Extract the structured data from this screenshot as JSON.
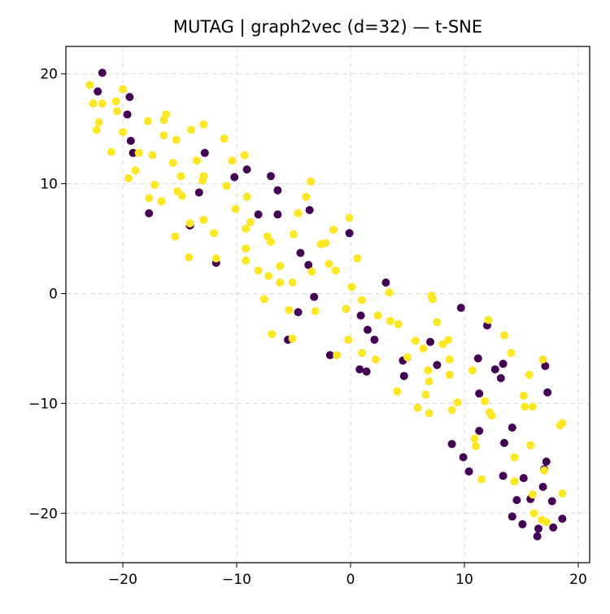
{
  "chart_data": {
    "type": "scatter",
    "title": "MUTAG | graph2vec (d=32) — t-SNE",
    "xlabel": "",
    "ylabel": "",
    "xlim": [
      -25,
      21
    ],
    "ylim": [
      -24.5,
      22.5
    ],
    "xticks": [
      -20,
      -10,
      0,
      10,
      20
    ],
    "yticks": [
      -20,
      -10,
      0,
      10,
      20
    ],
    "xtick_labels": [
      "−20",
      "−10",
      "0",
      "10",
      "20"
    ],
    "ytick_labels": [
      "−20",
      "−10",
      "0",
      "10",
      "20"
    ],
    "grid": true,
    "legend": "none",
    "colors": {
      "class_0": "#440154",
      "class_1": "#fde725"
    },
    "series": [
      {
        "name": "class 0",
        "color": "#440154",
        "points": [
          [
            -21.8,
            20.1
          ],
          [
            -22.2,
            18.4
          ],
          [
            -19.4,
            17.9
          ],
          [
            -19.6,
            16.3
          ],
          [
            -19.3,
            13.9
          ],
          [
            -19.1,
            12.8
          ],
          [
            -17.7,
            7.3
          ],
          [
            -12.8,
            12.8
          ],
          [
            -13.3,
            9.2
          ],
          [
            -14.1,
            6.2
          ],
          [
            -11.8,
            2.8
          ],
          [
            -9.1,
            11.3
          ],
          [
            -10.2,
            10.6
          ],
          [
            -7.0,
            10.7
          ],
          [
            -6.4,
            9.4
          ],
          [
            -8.1,
            7.2
          ],
          [
            -6.4,
            7.2
          ],
          [
            -3.6,
            7.6
          ],
          [
            -4.4,
            3.7
          ],
          [
            -3.7,
            2.6
          ],
          [
            -3.2,
            -0.3
          ],
          [
            -4.6,
            -1.7
          ],
          [
            -5.5,
            -4.2
          ],
          [
            -0.1,
            5.5
          ],
          [
            -1.8,
            -5.6
          ],
          [
            3.1,
            1.0
          ],
          [
            0.9,
            -2.0
          ],
          [
            1.5,
            -3.3
          ],
          [
            2.1,
            -4.2
          ],
          [
            0.8,
            -6.9
          ],
          [
            1.4,
            -7.1
          ],
          [
            4.6,
            -6.1
          ],
          [
            4.7,
            -7.5
          ],
          [
            7.0,
            -4.4
          ],
          [
            7.6,
            -6.5
          ],
          [
            9.7,
            -1.3
          ],
          [
            12.0,
            -2.9
          ],
          [
            11.2,
            -5.9
          ],
          [
            12.7,
            -6.9
          ],
          [
            13.2,
            -7.7
          ],
          [
            13.4,
            -6.4
          ],
          [
            11.3,
            -9.1
          ],
          [
            11.3,
            -12.5
          ],
          [
            8.9,
            -13.7
          ],
          [
            9.9,
            -14.9
          ],
          [
            10.4,
            -16.2
          ],
          [
            13.5,
            -13.6
          ],
          [
            13.4,
            -16.6
          ],
          [
            14.2,
            -12.2
          ],
          [
            14.2,
            -20.3
          ],
          [
            14.6,
            -18.8
          ],
          [
            15.1,
            -21.0
          ],
          [
            15.2,
            -16.8
          ],
          [
            15.8,
            -18.7
          ],
          [
            16.4,
            -22.1
          ],
          [
            16.5,
            -21.4
          ],
          [
            16.9,
            -17.6
          ],
          [
            17.1,
            -6.6
          ],
          [
            17.3,
            -9.0
          ],
          [
            17.2,
            -15.3
          ],
          [
            17.0,
            -16.0
          ],
          [
            17.7,
            -18.9
          ],
          [
            17.8,
            -21.3
          ],
          [
            18.6,
            -20.5
          ]
        ]
      },
      {
        "name": "class 1",
        "color": "#fde725",
        "points": [
          [
            -22.9,
            19.0
          ],
          [
            -22.6,
            17.3
          ],
          [
            -21.8,
            17.3
          ],
          [
            -20.6,
            17.5
          ],
          [
            -20.0,
            18.6
          ],
          [
            -20.5,
            16.6
          ],
          [
            -22.1,
            15.6
          ],
          [
            -22.3,
            14.9
          ],
          [
            -20.0,
            14.7
          ],
          [
            -21.0,
            12.9
          ],
          [
            -18.6,
            12.8
          ],
          [
            -17.4,
            12.6
          ],
          [
            -19.5,
            10.5
          ],
          [
            -18.9,
            11.2
          ],
          [
            -17.2,
            9.9
          ],
          [
            -17.7,
            8.7
          ],
          [
            -16.6,
            8.4
          ],
          [
            -17.8,
            15.7
          ],
          [
            -16.2,
            16.3
          ],
          [
            -16.4,
            15.8
          ],
          [
            -16.4,
            14.4
          ],
          [
            -15.3,
            14.0
          ],
          [
            -15.6,
            11.9
          ],
          [
            -14.9,
            10.7
          ],
          [
            -15.2,
            9.3
          ],
          [
            -14.8,
            8.9
          ],
          [
            -15.4,
            5.2
          ],
          [
            -14.1,
            6.4
          ],
          [
            -14.2,
            3.3
          ],
          [
            -14.0,
            14.9
          ],
          [
            -13.5,
            12.1
          ],
          [
            -12.9,
            15.4
          ],
          [
            -13.0,
            10.3
          ],
          [
            -12.9,
            10.7
          ],
          [
            -12.9,
            6.7
          ],
          [
            -12.0,
            5.5
          ],
          [
            -11.8,
            3.2
          ],
          [
            -11.1,
            14.1
          ],
          [
            -10.9,
            9.8
          ],
          [
            -10.4,
            12.1
          ],
          [
            -10.1,
            7.7
          ],
          [
            -9.3,
            12.6
          ],
          [
            -9.1,
            8.8
          ],
          [
            -8.8,
            6.5
          ],
          [
            -9.2,
            5.9
          ],
          [
            -9.2,
            4.1
          ],
          [
            -9.2,
            3.0
          ],
          [
            -8.1,
            2.1
          ],
          [
            -7.3,
            5.2
          ],
          [
            -7.0,
            4.7
          ],
          [
            -7.2,
            1.6
          ],
          [
            -6.2,
            2.5
          ],
          [
            -6.2,
            1.0
          ],
          [
            -7.6,
            -0.5
          ],
          [
            -6.9,
            -3.7
          ],
          [
            -5.0,
            5.4
          ],
          [
            -4.6,
            7.3
          ],
          [
            -3.9,
            8.8
          ],
          [
            -3.5,
            10.2
          ],
          [
            -5.1,
            1.0
          ],
          [
            -5.4,
            -1.5
          ],
          [
            -5.1,
            -4.1
          ],
          [
            -3.4,
            2.0
          ],
          [
            -3.1,
            -1.6
          ],
          [
            -2.6,
            4.5
          ],
          [
            -2.2,
            4.6
          ],
          [
            -1.9,
            2.7
          ],
          [
            -1.5,
            5.8
          ],
          [
            -1.3,
            2.1
          ],
          [
            -1.2,
            -5.6
          ],
          [
            -0.4,
            -1.4
          ],
          [
            -0.1,
            6.9
          ],
          [
            -0.2,
            -4.2
          ],
          [
            0.6,
            3.2
          ],
          [
            0.1,
            0.6
          ],
          [
            1.0,
            -0.6
          ],
          [
            1.0,
            -5.4
          ],
          [
            2.2,
            -6.0
          ],
          [
            2.4,
            -2.0
          ],
          [
            3.4,
            0.1
          ],
          [
            3.5,
            -2.5
          ],
          [
            4.2,
            -2.8
          ],
          [
            4.1,
            -8.9
          ],
          [
            5.0,
            -5.8
          ],
          [
            5.7,
            -4.3
          ],
          [
            5.9,
            -10.4
          ],
          [
            6.4,
            -5.0
          ],
          [
            6.6,
            -9.2
          ],
          [
            6.8,
            -7.0
          ],
          [
            6.9,
            -8.0
          ],
          [
            6.9,
            -10.9
          ],
          [
            7.1,
            -0.2
          ],
          [
            7.2,
            -0.5
          ],
          [
            7.6,
            -2.6
          ],
          [
            8.1,
            -4.6
          ],
          [
            8.6,
            -4.2
          ],
          [
            8.7,
            -6.0
          ],
          [
            8.7,
            -7.4
          ],
          [
            8.9,
            -10.6
          ],
          [
            9.4,
            -9.9
          ],
          [
            10.7,
            -7.0
          ],
          [
            10.9,
            -13.2
          ],
          [
            11.0,
            -13.9
          ],
          [
            11.5,
            -16.9
          ],
          [
            11.8,
            -9.8
          ],
          [
            12.1,
            -2.4
          ],
          [
            12.2,
            -10.8
          ],
          [
            12.4,
            -11.1
          ],
          [
            13.5,
            -3.8
          ],
          [
            14.1,
            -5.4
          ],
          [
            14.4,
            -14.9
          ],
          [
            14.4,
            -17.1
          ],
          [
            15.2,
            -9.3
          ],
          [
            15.3,
            -10.3
          ],
          [
            15.7,
            -7.4
          ],
          [
            15.8,
            -13.8
          ],
          [
            16.0,
            -10.3
          ],
          [
            16.0,
            -18.3
          ],
          [
            16.1,
            -20.0
          ],
          [
            16.9,
            -6.0
          ],
          [
            16.8,
            -20.6
          ],
          [
            17.0,
            -16.1
          ],
          [
            17.2,
            -20.8
          ],
          [
            18.4,
            -12.0
          ],
          [
            18.6,
            -11.8
          ],
          [
            18.6,
            -18.2
          ]
        ]
      }
    ]
  }
}
